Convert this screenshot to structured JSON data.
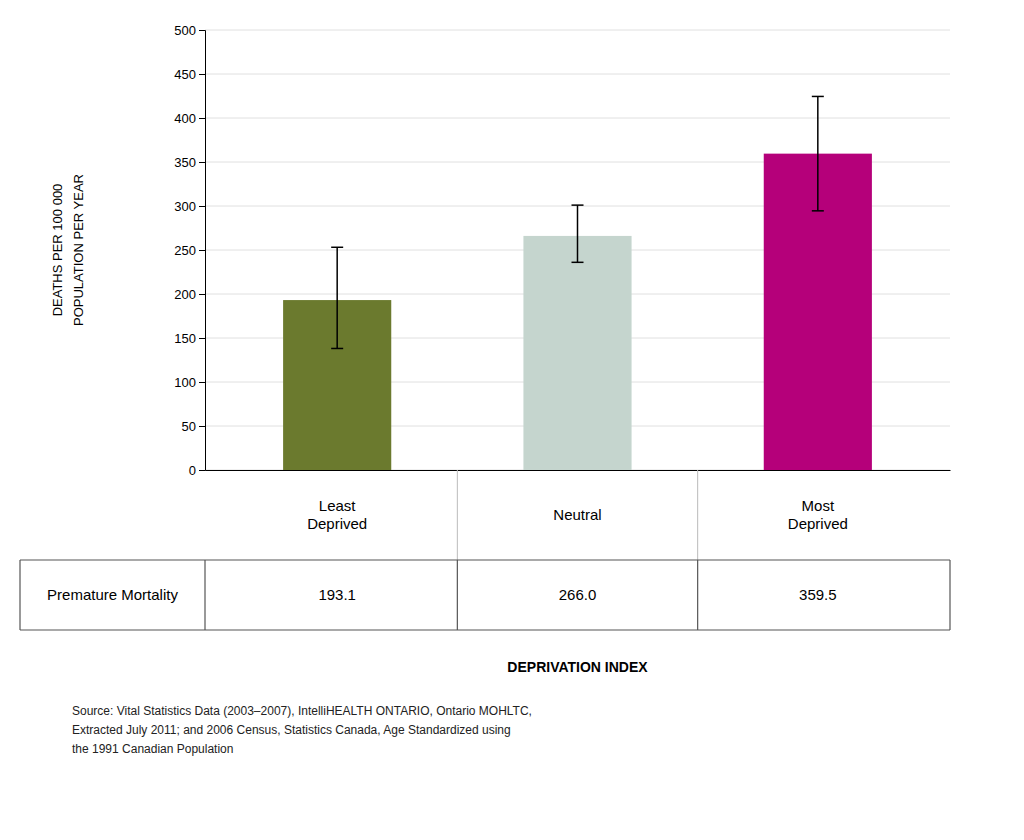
{
  "chart_data": {
    "type": "bar",
    "categories": [
      "Least\nDeprived",
      "Neutral",
      "Most\nDeprived"
    ],
    "values": [
      193.1,
      266.0,
      359.5
    ],
    "value_labels": [
      "193.1",
      "266.0",
      "359.5"
    ],
    "data_labels": true,
    "error_lower": [
      55,
      30,
      65
    ],
    "error_upper": [
      60,
      35,
      65
    ],
    "colors": [
      "#6b7a2e",
      "#c5d5ce",
      "#b5007a"
    ],
    "ylabel": "DEATHS PER 100 000\nPOPULATION PER YEAR",
    "xlabel": "DEPRIVATION INDEX",
    "ylim": [
      0,
      500
    ],
    "yticks": [
      0,
      50,
      100,
      150,
      200,
      250,
      300,
      350,
      400,
      450,
      500
    ],
    "grid": true,
    "annotations": [
      "Premature Mortality",
      "Source: Vital Statistics Data (2003–2007), IntelliHEALTH ONTARIO, Ontario MOHLTC,\nExtracted July 2011; and 2006 Census, Statistics Canada, Age Standardized using\nthe 1991 Canadian Population"
    ]
  }
}
